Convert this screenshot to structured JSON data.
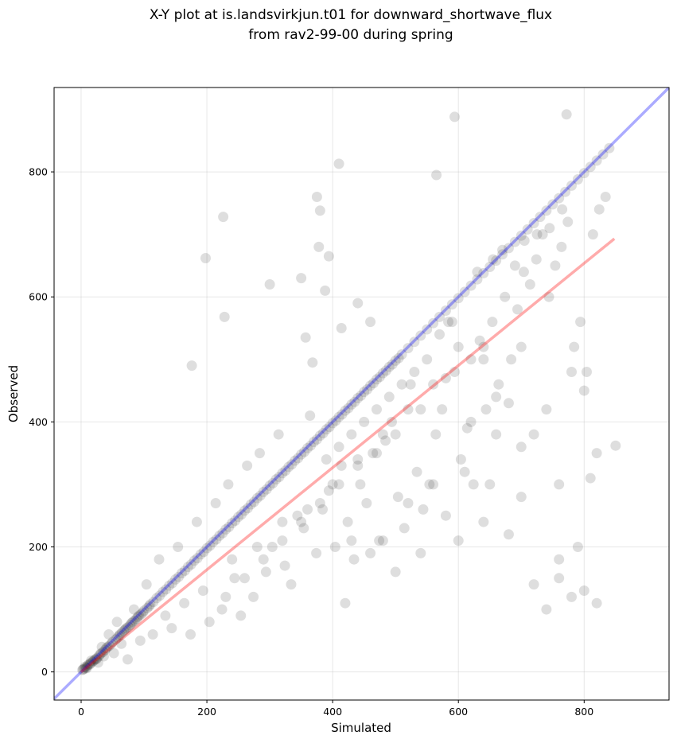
{
  "chart_data": {
    "type": "scatter",
    "title": "X-Y plot at is.landsvirkjun.t01 for downward_shortwave_flux",
    "subtitle": "from rav2-99-00 during spring",
    "xlabel": "Simulated",
    "ylabel": "Observed",
    "xlim": [
      -43,
      935
    ],
    "ylim": [
      -45,
      935
    ],
    "x_ticks": [
      0,
      200,
      400,
      600,
      800
    ],
    "y_ticks": [
      0,
      200,
      400,
      600,
      800
    ],
    "grid": true,
    "colors": {
      "points": "#000000",
      "one_to_one": "#0000ff",
      "regression": "#ff0000"
    },
    "one_to_one_line": {
      "x": [
        -43,
        935
      ],
      "y": [
        -43,
        935
      ]
    },
    "regression_line": {
      "x": [
        0,
        848
      ],
      "y": [
        0,
        693
      ]
    },
    "points": {
      "x": [
        2,
        5,
        8,
        10,
        12,
        15,
        18,
        20,
        22,
        25,
        28,
        30,
        32,
        35,
        38,
        40,
        42,
        45,
        48,
        50,
        55,
        58,
        60,
        62,
        65,
        68,
        70,
        72,
        75,
        78,
        80,
        82,
        85,
        88,
        90,
        92,
        95,
        98,
        100,
        105,
        108,
        110,
        115,
        120,
        125,
        130,
        135,
        140,
        145,
        150,
        155,
        160,
        165,
        170,
        175,
        180,
        185,
        190,
        195,
        200,
        205,
        210,
        215,
        220,
        225,
        230,
        235,
        240,
        245,
        250,
        255,
        260,
        265,
        270,
        275,
        280,
        285,
        290,
        295,
        300,
        305,
        310,
        315,
        320,
        325,
        330,
        335,
        340,
        345,
        350,
        355,
        360,
        365,
        370,
        375,
        380,
        385,
        390,
        395,
        400,
        405,
        410,
        415,
        420,
        425,
        430,
        435,
        440,
        445,
        450,
        455,
        460,
        465,
        470,
        475,
        480,
        485,
        490,
        495,
        500,
        505,
        510,
        520,
        530,
        540,
        550,
        560,
        570,
        580,
        590,
        600,
        610,
        620,
        630,
        640,
        650,
        660,
        670,
        680,
        690,
        700,
        710,
        720,
        730,
        740,
        750,
        760,
        770,
        780,
        790,
        800,
        810,
        820,
        830,
        840,
        850,
        3,
        6,
        9,
        14,
        16,
        24,
        27,
        33,
        36,
        44,
        52,
        57,
        64,
        74,
        84,
        94,
        104,
        114,
        124,
        134,
        144,
        154,
        164,
        174,
        184,
        194,
        204,
        214,
        224,
        234,
        244,
        254,
        264,
        274,
        284,
        294,
        304,
        314,
        324,
        334,
        344,
        354,
        364,
        374,
        384,
        394,
        404,
        414,
        424,
        434,
        444,
        454,
        464,
        474,
        484,
        494,
        504,
        514,
        524,
        534,
        544,
        554,
        564,
        574,
        584,
        594,
        604,
        614,
        624,
        634,
        644,
        654,
        664,
        674,
        684,
        694,
        704,
        714,
        724,
        734,
        744,
        754,
        764,
        774,
        784,
        794,
        804,
        814,
        824,
        834,
        198,
        226,
        375,
        380,
        410,
        594,
        772,
        565,
        378,
        394,
        228,
        176,
        368,
        357,
        300,
        350,
        388,
        414,
        440,
        460,
        520,
        560,
        610,
        650,
        700,
        720,
        760,
        790,
        810,
        820,
        680,
        640,
        600,
        580,
        540,
        500,
        480,
        460,
        430,
        420,
        620,
        660,
        700,
        740,
        780,
        800,
        760,
        720,
        680,
        640,
        600,
        560,
        520,
        480,
        440,
        400,
        360,
        320,
        280,
        240,
        630,
        655,
        670,
        690,
        705,
        725,
        745,
        765,
        640,
        590,
        570,
        550,
        530,
        510,
        490,
        470,
        450,
        430,
        410,
        390,
        740,
        760,
        780,
        800,
        820,
        700,
        660,
        620,
        580,
        540,
        500,
        470,
        440,
        410,
        380,
        350,
        320,
        290,
        260,
        230
      ],
      "y": [
        3,
        5,
        7,
        10,
        12,
        14,
        16,
        18,
        20,
        22,
        25,
        28,
        30,
        32,
        35,
        38,
        40,
        42,
        45,
        48,
        52,
        55,
        58,
        60,
        63,
        66,
        68,
        70,
        72,
        75,
        78,
        80,
        82,
        85,
        88,
        90,
        92,
        95,
        98,
        102,
        105,
        108,
        112,
        118,
        122,
        128,
        132,
        138,
        142,
        148,
        152,
        158,
        162,
        168,
        172,
        178,
        182,
        188,
        192,
        198,
        202,
        208,
        212,
        218,
        222,
        228,
        232,
        238,
        242,
        248,
        252,
        258,
        262,
        268,
        272,
        278,
        282,
        288,
        292,
        298,
        302,
        308,
        312,
        318,
        322,
        328,
        332,
        338,
        342,
        348,
        352,
        358,
        362,
        368,
        372,
        378,
        382,
        388,
        392,
        398,
        402,
        408,
        412,
        418,
        422,
        428,
        432,
        438,
        442,
        448,
        452,
        458,
        462,
        468,
        472,
        478,
        482,
        488,
        492,
        498,
        502,
        508,
        518,
        528,
        538,
        548,
        558,
        568,
        578,
        588,
        598,
        608,
        618,
        628,
        638,
        648,
        658,
        668,
        678,
        688,
        698,
        708,
        718,
        728,
        738,
        748,
        758,
        768,
        778,
        788,
        798,
        808,
        818,
        828,
        838,
        362,
        4,
        8,
        6,
        12,
        18,
        20,
        15,
        40,
        25,
        60,
        30,
        80,
        45,
        20,
        100,
        50,
        140,
        60,
        180,
        90,
        70,
        200,
        110,
        60,
        240,
        130,
        80,
        270,
        100,
        300,
        150,
        90,
        330,
        120,
        350,
        160,
        200,
        380,
        170,
        140,
        250,
        230,
        410,
        190,
        260,
        290,
        200,
        330,
        240,
        180,
        300,
        270,
        350,
        210,
        370,
        400,
        280,
        230,
        460,
        320,
        260,
        300,
        380,
        420,
        560,
        480,
        340,
        390,
        300,
        530,
        420,
        560,
        460,
        600,
        500,
        580,
        640,
        620,
        660,
        700,
        600,
        650,
        680,
        720,
        520,
        560,
        480,
        700,
        740,
        760,
        662,
        728,
        760,
        738,
        813,
        888,
        892,
        795,
        680,
        665,
        568,
        490,
        495,
        535,
        620,
        630,
        610,
        550,
        590,
        560,
        270,
        300,
        320,
        300,
        280,
        140,
        180,
        200,
        310,
        350,
        220,
        240,
        210,
        250,
        190,
        160,
        210,
        190,
        210,
        110,
        400,
        380,
        360,
        420,
        480,
        450,
        300,
        380,
        430,
        500,
        520,
        460,
        420,
        380,
        340,
        300,
        260,
        240,
        200,
        180,
        640,
        660,
        675,
        650,
        690,
        700,
        710,
        740,
        520,
        560,
        540,
        500,
        480,
        460,
        440,
        420,
        400,
        380,
        360,
        340,
        100,
        150,
        120,
        130,
        110,
        520,
        440,
        500,
        470,
        420,
        380,
        350,
        330,
        300,
        270,
        240,
        210,
        180,
        150,
        120
      ]
    }
  }
}
